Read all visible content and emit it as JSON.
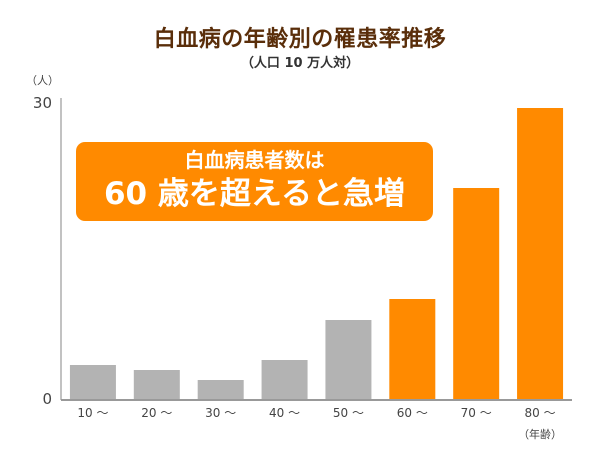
{
  "chart_data": {
    "type": "bar",
    "title": "白血病の年齢別の罹患率推移",
    "subtitle": "（人口 10 万人対）",
    "ylabel": "（人）",
    "xlabel": "（年齢）",
    "categories": [
      "10 ～",
      "20 ～",
      "30 ～",
      "40 ～",
      "50 ～",
      "60 ～",
      "70 ～",
      "80 ～"
    ],
    "values": [
      3.5,
      3.0,
      2.0,
      4.0,
      8.0,
      10.1,
      21.2,
      29.2
    ],
    "highlight": [
      false,
      false,
      false,
      false,
      false,
      true,
      true,
      true
    ],
    "ylim": [
      0,
      30
    ],
    "yticks": [
      "0",
      "30"
    ],
    "grid": false,
    "colors": {
      "normal": "#b3b3b3",
      "highlight": "#ff8a00",
      "axis": "#999999"
    }
  },
  "callout": {
    "line1": "白血病患者数は",
    "line2": "60 歳を超えると急増"
  }
}
